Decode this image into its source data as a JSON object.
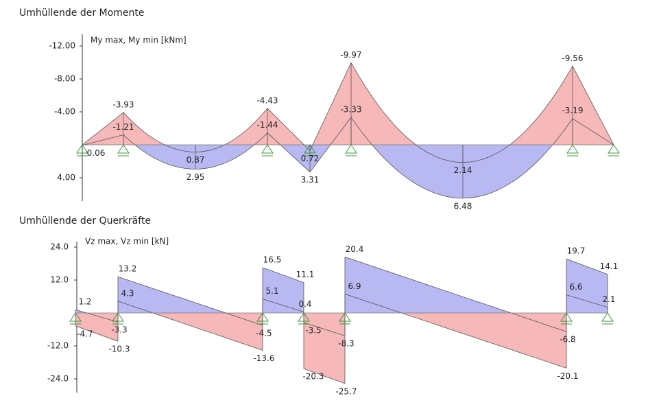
{
  "chart_data": [
    {
      "type": "area",
      "title": "Umhüllende der Momente",
      "ylabel": "My max, My min [kNm]",
      "y_inverted": true,
      "ylim": [
        -13.5,
        7
      ],
      "yticks": [
        {
          "value": -12,
          "label": "-12.00"
        },
        {
          "value": -8,
          "label": "-8.00"
        },
        {
          "value": -4,
          "label": "-4.00"
        },
        {
          "value": 4,
          "label": "4.00"
        }
      ],
      "max": [
        0.06,
        -1.21,
        2.95,
        -1.44,
        3.31,
        -3.33,
        6.48,
        -3.19
      ],
      "min": [
        null,
        -3.93,
        0.87,
        -4.43,
        0.72,
        -9.97,
        2.14,
        -9.56
      ],
      "max_color": "#b8b8f2",
      "min_color": "#f6b8b8"
    },
    {
      "type": "step",
      "title": "Umhüllende der Querkräfte",
      "ylabel": "Vz max, Vz min [kN]",
      "y_inverted": false,
      "ylim": [
        -29,
        26
      ],
      "yticks": [
        {
          "value": 24,
          "label": "24.0"
        },
        {
          "value": 12,
          "label": "12.0"
        },
        {
          "value": -12,
          "label": "-12.0"
        },
        {
          "value": -24,
          "label": "-24.0"
        }
      ],
      "max": [
        [
          1.2,
          -3.3
        ],
        [
          13.2,
          -4.5
        ],
        [
          16.5,
          11.1
        ],
        [
          -3.5,
          -8.3
        ],
        [
          20.4,
          -6.8
        ],
        [
          19.7,
          14.1
        ]
      ],
      "min": [
        [
          -4.7,
          -10.3
        ],
        [
          4.3,
          -13.6
        ],
        [
          5.1,
          0.4
        ],
        [
          -20.3,
          -25.7
        ],
        [
          6.9,
          -20.1
        ],
        [
          6.6,
          2.1
        ]
      ],
      "max_color": "#b8b8f2",
      "min_color": "#f6b8b8"
    }
  ]
}
